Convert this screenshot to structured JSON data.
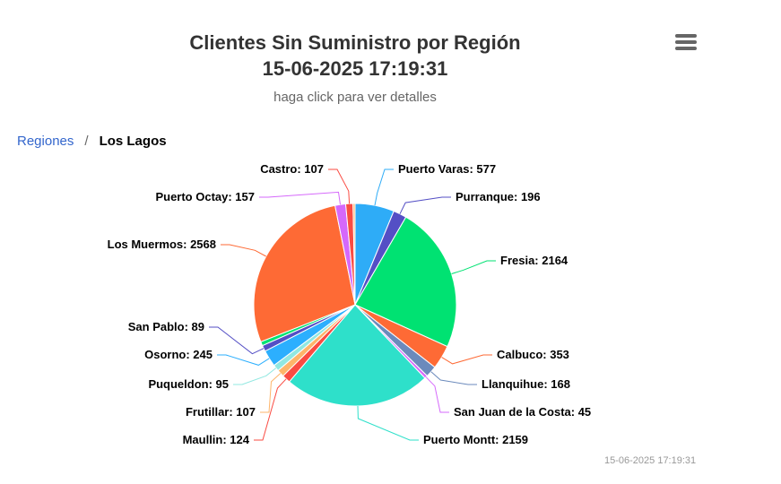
{
  "title_line1": "Clientes Sin Suministro por Región",
  "title_line2": "15-06-2025 17:19:31",
  "subtitle": "haga click para ver detalles",
  "breadcrumb": {
    "parent": "Regiones",
    "separator": "/",
    "current": "Los Lagos"
  },
  "credit": "15-06-2025 17:19:31",
  "menu_icon": "hamburger-menu-icon",
  "chart_data": {
    "type": "pie",
    "slices": [
      {
        "name": "Puerto Varas",
        "value": 577,
        "color": "#2eacf7"
      },
      {
        "name": "Purranque",
        "value": 196,
        "color": "#544fc5"
      },
      {
        "name": "Fresia",
        "value": 2164,
        "color": "#00e272"
      },
      {
        "name": "Calbuco",
        "value": 353,
        "color": "#fe6a35"
      },
      {
        "name": "Llanquihue",
        "value": 168,
        "color": "#6b8abc"
      },
      {
        "name": "San Juan de la Costa",
        "value": 45,
        "color": "#d568fb"
      },
      {
        "name": "Puerto Montt",
        "value": 2159,
        "color": "#2ee0ca"
      },
      {
        "name": "Maullin",
        "value": 124,
        "color": "#fa4b42"
      },
      {
        "name": "Frutillar",
        "value": 107,
        "color": "#feb56a"
      },
      {
        "name": "Puqueldon",
        "value": 95,
        "color": "#91e8e1"
      },
      {
        "name": "Osorno",
        "value": 245,
        "color": "#2caffe"
      },
      {
        "name": "San Pablo",
        "value": 89,
        "color": "#544fc5"
      },
      {
        "name": "",
        "value": 60,
        "color": "#00e272"
      },
      {
        "name": "Los Muermos",
        "value": 2568,
        "color": "#fe6a35"
      },
      {
        "name": "Puerto Octay",
        "value": 157,
        "color": "#d568fb"
      },
      {
        "name": "Castro",
        "value": 107,
        "color": "#fa4b42"
      },
      {
        "name": "",
        "value": 30,
        "color": "#feb56a"
      }
    ]
  }
}
